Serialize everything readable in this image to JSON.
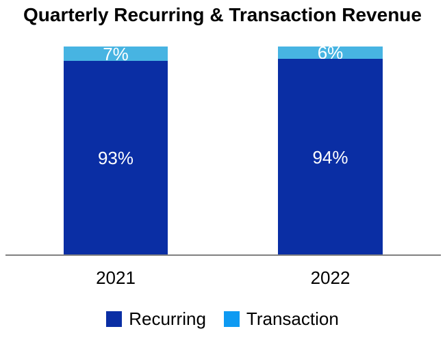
{
  "title": "Quarterly Recurring & Transaction Revenue",
  "colors": {
    "recurring": "#0A2EA4",
    "transaction_bar": "#47B4E2",
    "transaction_legend": "#0E9AF2",
    "axis_line": "#808080",
    "bar_label_text": "#FFFFFF",
    "title_text": "#000000"
  },
  "chart_data": {
    "type": "bar",
    "stacked": true,
    "unit": "percent",
    "title": "Quarterly Recurring & Transaction Revenue",
    "categories": [
      "2021",
      "2022"
    ],
    "series": [
      {
        "name": "Recurring",
        "values": [
          93,
          94
        ],
        "labels": [
          "93%",
          "94%"
        ],
        "color": "#0A2EA4"
      },
      {
        "name": "Transaction",
        "values": [
          7,
          6
        ],
        "labels": [
          "7%",
          "6%"
        ],
        "color": "#47B4E2",
        "legend_color": "#0E9AF2"
      }
    ],
    "xlabel": "",
    "ylabel": "",
    "ylim": [
      0,
      100
    ],
    "grid": false,
    "legend_position": "bottom",
    "axis_line_visible": true
  },
  "legend": {
    "items": [
      {
        "label": "Recurring",
        "color": "#0A2EA4"
      },
      {
        "label": "Transaction",
        "color": "#0E9AF2"
      }
    ]
  }
}
